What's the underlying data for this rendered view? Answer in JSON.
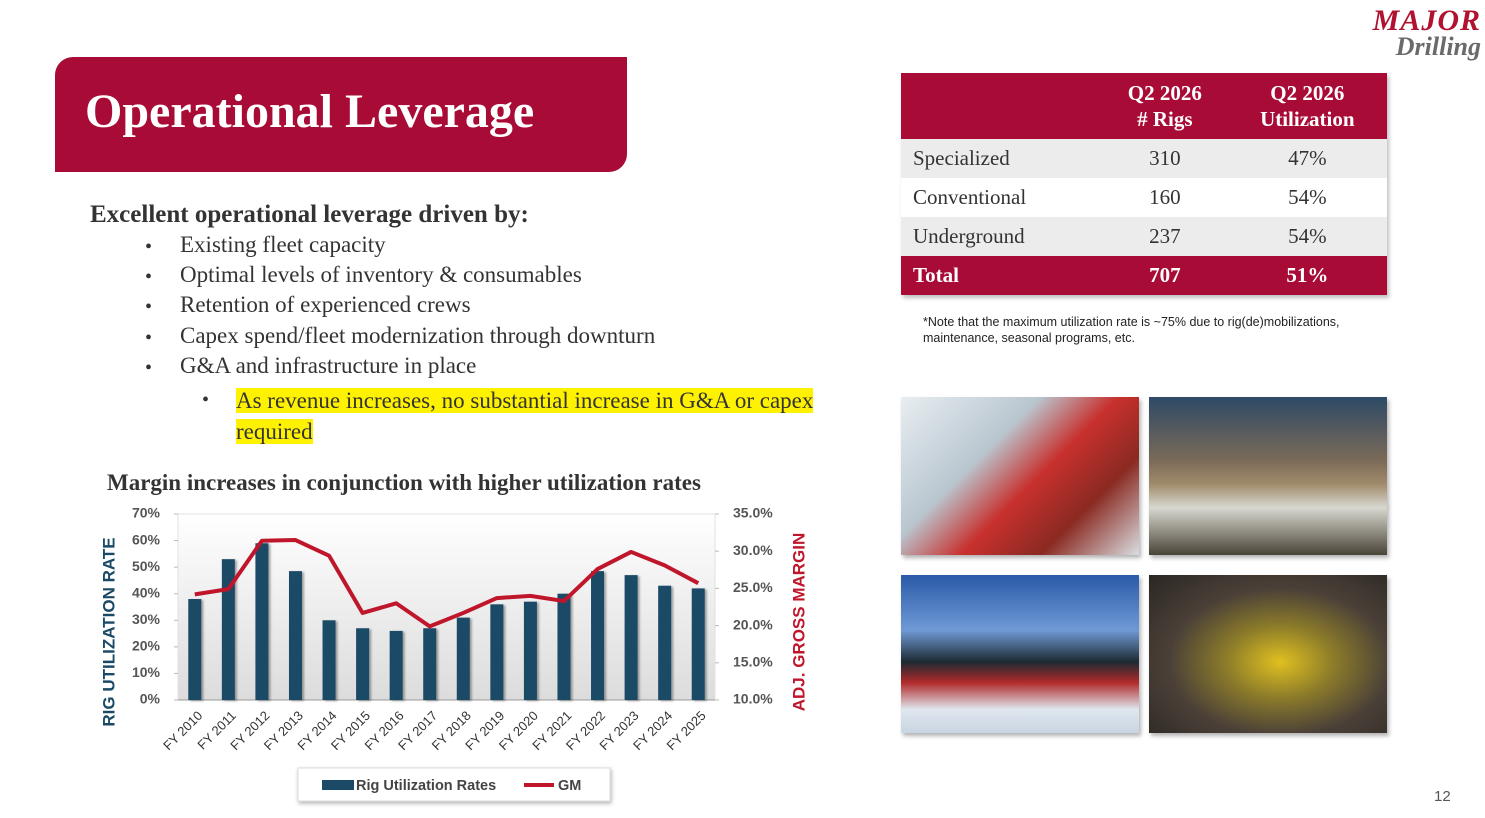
{
  "logo": {
    "line1": "MAJOR",
    "line2": "Drilling"
  },
  "header": {
    "title": "Operational Leverage"
  },
  "bullets": {
    "intro": "Excellent operational leverage driven by:",
    "items": [
      "Existing fleet capacity",
      "Optimal levels of inventory & consumables",
      "Retention of experienced crews",
      "Capex spend/fleet modernization through downturn",
      "G&A and infrastructure in place"
    ],
    "subitem": "As revenue increases, no substantial increase in G&A or capex required"
  },
  "table": {
    "headers": [
      {
        "line1": "Q2 2026",
        "line2": "# Rigs"
      },
      {
        "line1": "Q2 2026",
        "line2": "Utilization"
      }
    ],
    "rows": [
      [
        "Specialized",
        "310",
        "47%"
      ],
      [
        "Conventional",
        "160",
        "54%"
      ],
      [
        "Underground",
        "237",
        "54%"
      ]
    ],
    "total": [
      "Total",
      "707",
      "51%"
    ]
  },
  "note": "*Note that the maximum utilization rate is ~75% due to rig(de)mobilizations, maintenance, seasonal programs, etc.",
  "page_number": "12",
  "chart_data": {
    "type": "bar-line",
    "title": "Margin increases in conjunction with higher utilization rates",
    "y_label": "RIG UTILIZATION RATE",
    "y2_label": "ADJ. GROSS MARGIN",
    "categories": [
      "FY 2010",
      "FY 2011",
      "FY 2012",
      "FY 2013",
      "FY 2014",
      "FY 2015",
      "FY 2016",
      "FY 2017",
      "FY 2018",
      "FY 2019",
      "FY 2020",
      "FY 2021",
      "FY 2022",
      "FY 2023",
      "FY 2024",
      "FY 2025"
    ],
    "series": [
      {
        "name": "Rig Utilization Rates",
        "color": "#1b4a66",
        "kind": "bar",
        "values": [
          38,
          53,
          59,
          48.5,
          30,
          27,
          26,
          27,
          31,
          36,
          37,
          40,
          48.5,
          47,
          43,
          42
        ]
      },
      {
        "name": "GM",
        "color": "#c0162c",
        "kind": "line",
        "axis": "y2",
        "values": [
          24.2,
          24.9,
          31.4,
          31.5,
          29.4,
          21.7,
          23.0,
          19.9,
          21.7,
          23.7,
          24.0,
          23.3,
          27.6,
          29.9,
          28.1,
          25.7
        ]
      }
    ],
    "ylim": [
      0,
      70
    ],
    "yticks": [
      {
        "value": 0,
        "label": "0%"
      },
      {
        "value": 10,
        "label": "10%"
      },
      {
        "value": 20,
        "label": "20%"
      },
      {
        "value": 30,
        "label": "30%"
      },
      {
        "value": 40,
        "label": "40%"
      },
      {
        "value": 50,
        "label": "50%"
      },
      {
        "value": 60,
        "label": "60%"
      },
      {
        "value": 70,
        "label": "70%"
      }
    ],
    "y2lim": [
      10,
      35
    ],
    "y2ticks": [
      {
        "value": 10,
        "label": "10.0%"
      },
      {
        "value": 15,
        "label": "15.0%"
      },
      {
        "value": 20,
        "label": "20.0%"
      },
      {
        "value": 25,
        "label": "25.0%"
      },
      {
        "value": 30,
        "label": "30.0%"
      },
      {
        "value": 35,
        "label": "35.0%"
      }
    ],
    "legend": "bottom"
  }
}
